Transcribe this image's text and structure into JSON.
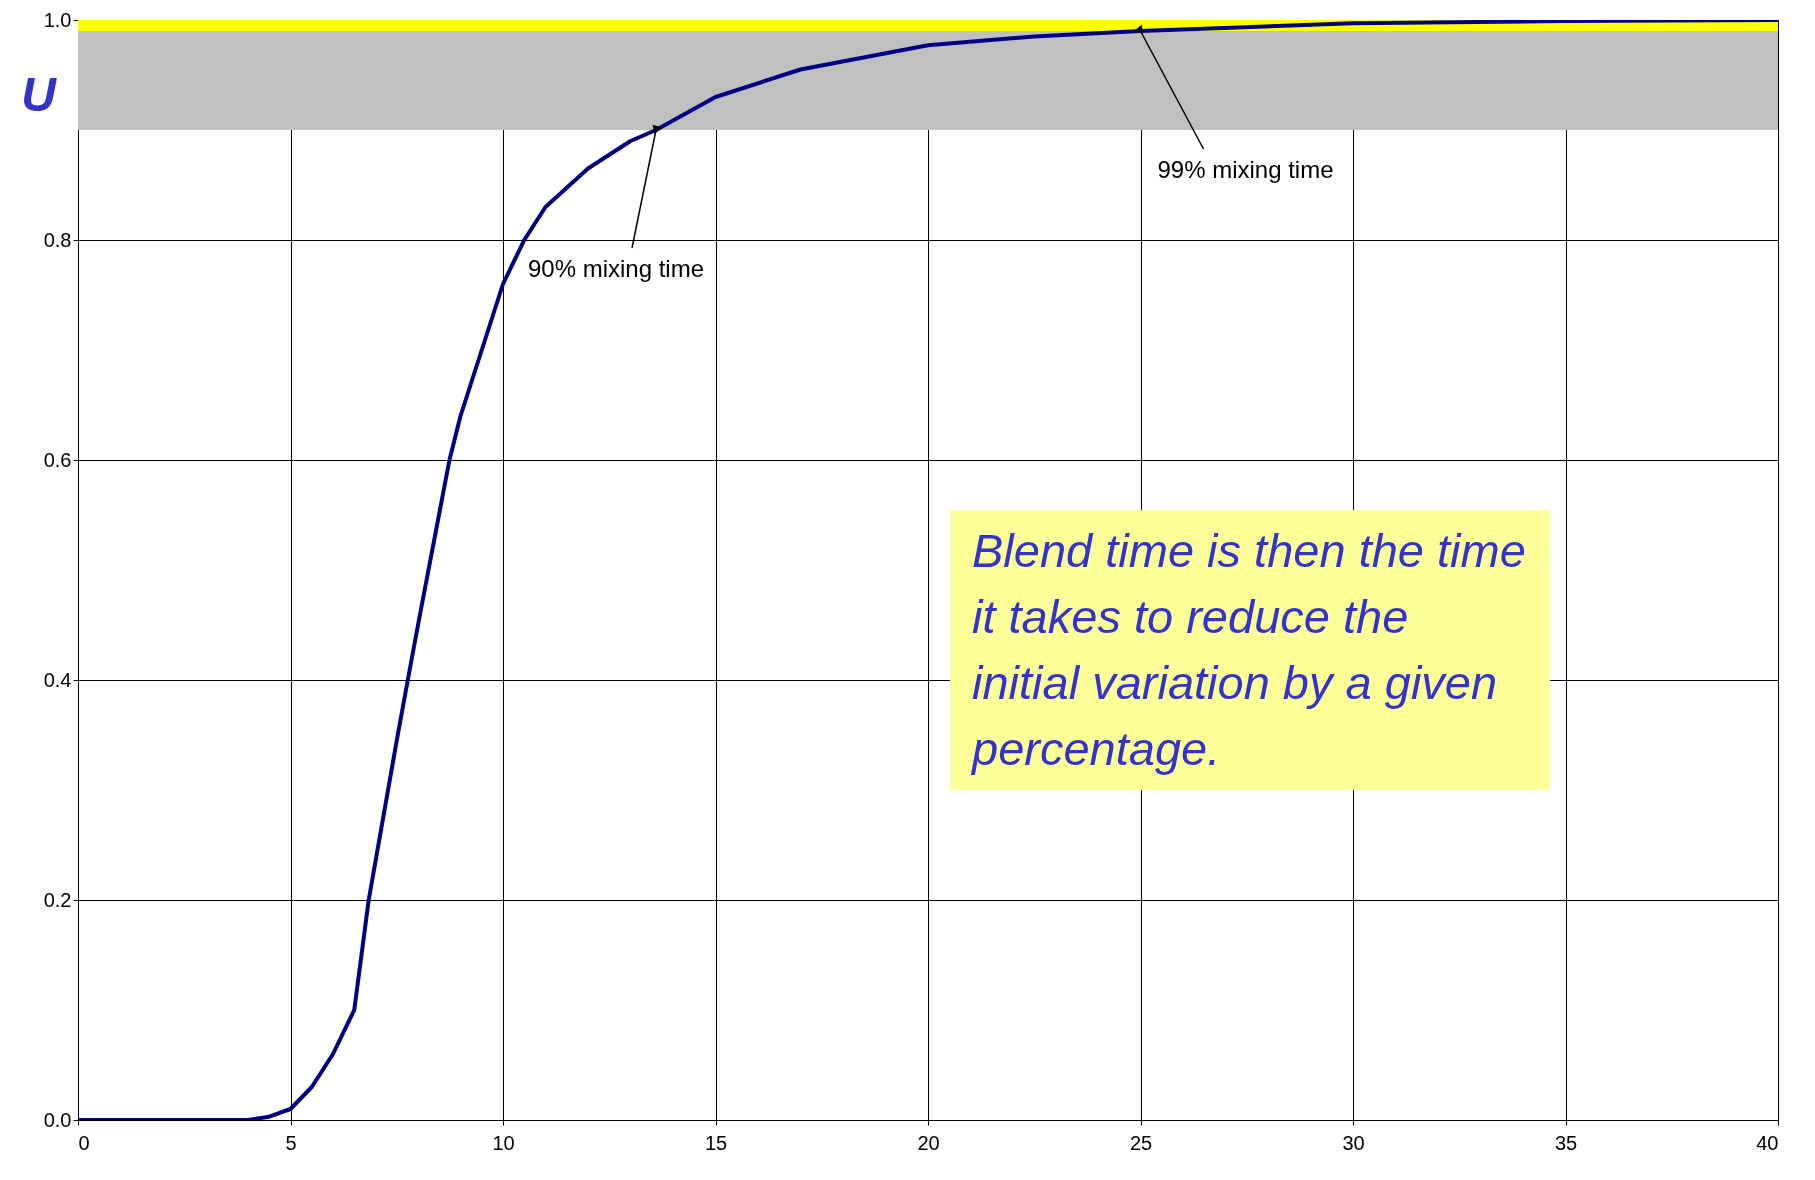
{
  "chart_data": {
    "type": "line",
    "ylabel": "U",
    "x": [
      0,
      1,
      2,
      3,
      4,
      4.5,
      5,
      5.5,
      6,
      6.5,
      6.84,
      7.5,
      7.76,
      8,
      8.74,
      9,
      10,
      10.5,
      11,
      12,
      13,
      13.6,
      15,
      17,
      20,
      22.5,
      25,
      30,
      35,
      40
    ],
    "series": [
      {
        "color": "#000080",
        "values": [
          0,
          0,
          0,
          0,
          0,
          0.003,
          0.01,
          0.03,
          0.06,
          0.1,
          0.2,
          0.345,
          0.4,
          0.45,
          0.6,
          0.64,
          0.76,
          0.8,
          0.83,
          0.865,
          0.89,
          0.9,
          0.93,
          0.955,
          0.977,
          0.985,
          0.99,
          0.997,
          0.999,
          1.0
        ]
      }
    ],
    "xlim": [
      0,
      40
    ],
    "xticks": [
      0,
      5,
      10,
      15,
      20,
      25,
      30,
      35,
      40
    ],
    "ylim": [
      0,
      1
    ],
    "yticks": [
      {
        "value": 0,
        "label": "0.0"
      },
      {
        "value": 0.2,
        "label": "0.2"
      },
      {
        "value": 0.4,
        "label": "0.4"
      },
      {
        "value": 0.6,
        "label": "0.6"
      },
      {
        "value": 0.8,
        "label": "0.8"
      },
      {
        "value": 1,
        "label": "1.0"
      }
    ],
    "bands": [
      {
        "axis": "y",
        "from": 0.9,
        "to": 0.99,
        "color": "#c0c0c0"
      },
      {
        "axis": "y",
        "from": 0.99,
        "to": 1.0,
        "color": "#ffff00"
      }
    ],
    "annotations": [
      {
        "text": "90% mixing time",
        "x": 13.6,
        "y": 0.9
      },
      {
        "text": "99% mixing time",
        "x": 25,
        "y": 0.99
      },
      "Blend time is then the time it takes to reduce the initial variation by a given percentage."
    ],
    "grid": true,
    "line_style": "solid",
    "marker": "none"
  }
}
